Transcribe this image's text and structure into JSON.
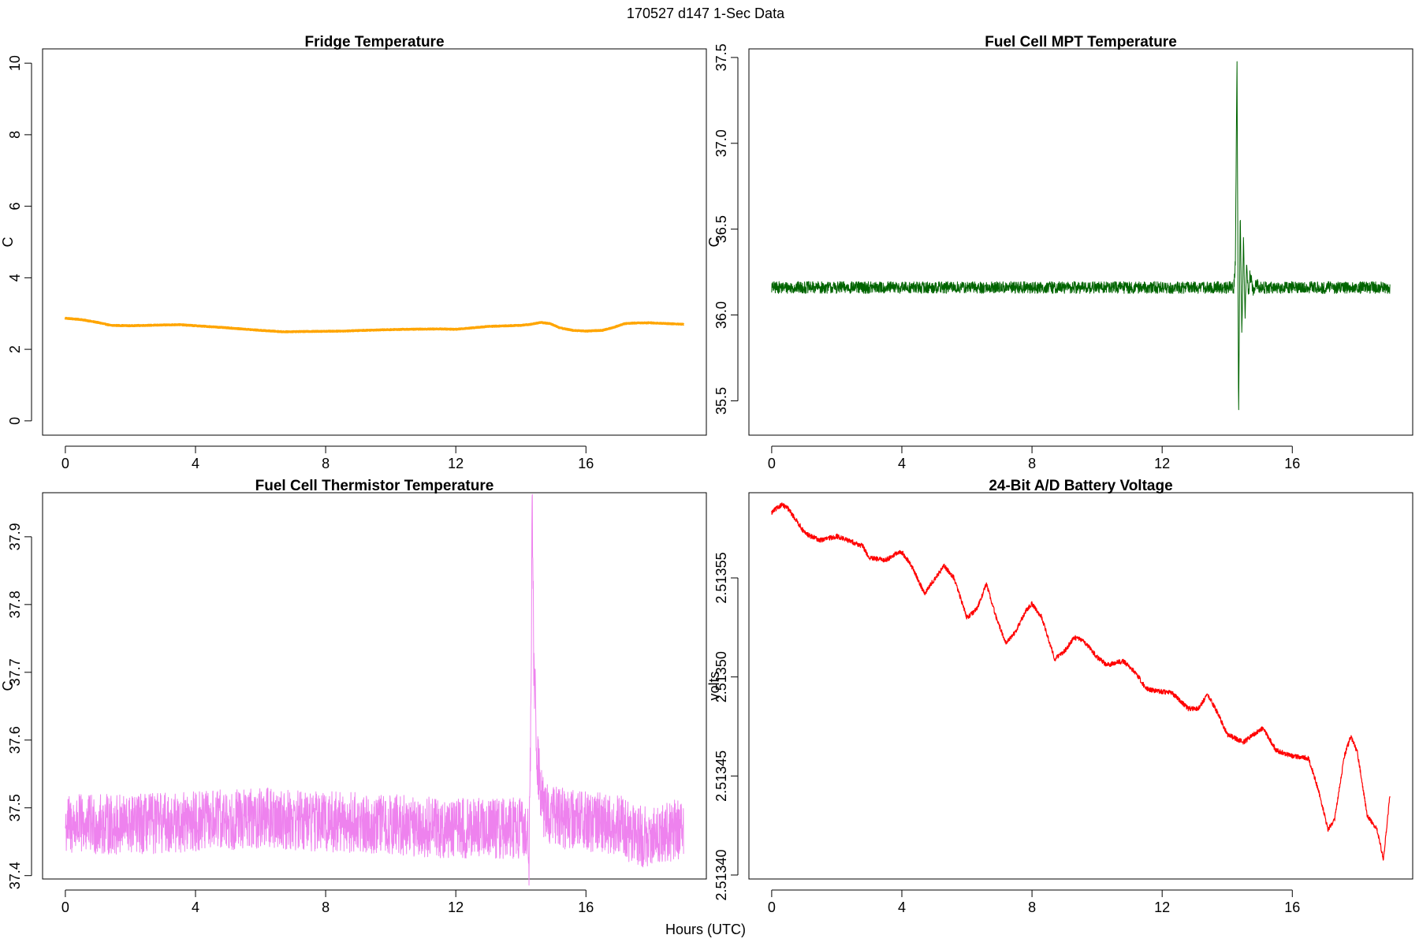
{
  "figure": {
    "main_title": "170527   d147   1-Sec Data",
    "xlabel": "Hours (UTC)"
  },
  "chart_data": [
    {
      "type": "line",
      "title": "Fridge Temperature",
      "ylabel": "C",
      "xlim": [
        -0.7,
        19.7
      ],
      "ylim": [
        -0.4,
        10.4
      ],
      "xticks": [
        0,
        4,
        8,
        12,
        16
      ],
      "xtick_labels": [
        "0",
        "4",
        "8",
        "12",
        "16"
      ],
      "yticks": [
        0,
        2,
        4,
        6,
        8,
        10
      ],
      "ytick_labels": [
        "0",
        "2",
        "4",
        "6",
        "8",
        "10"
      ],
      "color": "#FFA500",
      "line_width": 3,
      "noise": 0.01,
      "x": [
        0,
        0.5,
        1.0,
        1.4,
        2.0,
        3.0,
        3.5,
        4.0,
        5.0,
        6.0,
        6.7,
        7.5,
        8.5,
        9.5,
        10.5,
        11.5,
        12.0,
        12.5,
        13.0,
        14.0,
        14.3,
        14.6,
        14.9,
        15.2,
        15.6,
        16.0,
        16.5,
        16.8,
        17.2,
        17.6,
        18.0,
        18.5,
        19.0
      ],
      "y": [
        2.87,
        2.83,
        2.75,
        2.67,
        2.66,
        2.68,
        2.69,
        2.66,
        2.6,
        2.53,
        2.49,
        2.5,
        2.51,
        2.54,
        2.56,
        2.57,
        2.56,
        2.6,
        2.64,
        2.67,
        2.7,
        2.75,
        2.72,
        2.6,
        2.53,
        2.51,
        2.53,
        2.6,
        2.72,
        2.74,
        2.74,
        2.72,
        2.7
      ]
    },
    {
      "type": "line",
      "title": "Fuel Cell MPT Temperature",
      "ylabel": "C",
      "xlim": [
        -0.7,
        19.7
      ],
      "ylim": [
        35.3,
        37.55
      ],
      "xticks": [
        0,
        4,
        8,
        12,
        16
      ],
      "xtick_labels": [
        "0",
        "4",
        "8",
        "12",
        "16"
      ],
      "yticks": [
        35.5,
        36.0,
        36.5,
        37.0,
        37.5
      ],
      "ytick_labels": [
        "35.5",
        "36.0",
        "36.5",
        "37.0",
        "37.5"
      ],
      "color": "#006400",
      "line_width": 1,
      "noise": 0.035,
      "x": [
        0,
        14.2,
        14.25,
        14.3,
        14.35,
        14.4,
        14.45,
        14.5,
        14.55,
        14.6,
        14.65,
        14.7,
        14.8,
        14.9,
        15.0,
        19.0
      ],
      "y": [
        36.16,
        36.16,
        36.3,
        37.49,
        35.38,
        36.61,
        35.88,
        36.45,
        36.0,
        36.3,
        36.1,
        36.24,
        36.14,
        36.18,
        36.16,
        36.16
      ]
    },
    {
      "type": "line",
      "title": "Fuel Cell Thermistor Temperature",
      "ylabel": "C",
      "xlim": [
        -0.7,
        19.7
      ],
      "ylim": [
        37.395,
        37.965
      ],
      "xticks": [
        0,
        4,
        8,
        12,
        16
      ],
      "xtick_labels": [
        "0",
        "4",
        "8",
        "12",
        "16"
      ],
      "yticks": [
        37.4,
        37.5,
        37.6,
        37.7,
        37.8,
        37.9
      ],
      "ytick_labels": [
        "37.4",
        "37.5",
        "37.6",
        "37.7",
        "37.8",
        "37.9"
      ],
      "color": "#EE82EE",
      "line_width": 1,
      "noise": 0.045,
      "x": [
        0,
        2.0,
        4.0,
        6.0,
        8.0,
        10.0,
        12.0,
        14.2,
        14.25,
        14.3,
        14.35,
        14.4,
        14.45,
        14.5,
        14.6,
        14.7,
        14.9,
        15.2,
        16.0,
        17.0,
        17.5,
        18.0,
        18.5,
        19.0
      ],
      "y": [
        37.475,
        37.475,
        37.48,
        37.485,
        37.48,
        37.475,
        37.47,
        37.47,
        37.42,
        37.6,
        37.96,
        37.7,
        37.65,
        37.57,
        37.53,
        37.5,
        37.49,
        37.485,
        37.48,
        37.475,
        37.46,
        37.455,
        37.465,
        37.47
      ]
    },
    {
      "type": "line",
      "title": "24-Bit A/D Battery Voltage",
      "ylabel": "volts",
      "xlim": [
        -0.7,
        19.7
      ],
      "ylim": [
        2.513398,
        2.513593
      ],
      "xticks": [
        0,
        4,
        8,
        12,
        16
      ],
      "xtick_labels": [
        "0",
        "4",
        "8",
        "12",
        "16"
      ],
      "yticks": [
        2.5134,
        2.51345,
        2.5135,
        2.51355
      ],
      "ytick_labels": [
        "2.51340",
        "2.51345",
        "2.51350",
        "2.51355"
      ],
      "color": "#FF0000",
      "line_width": 1.2,
      "noise": 1.2e-06,
      "x": [
        0,
        0.3,
        0.5,
        0.8,
        1.0,
        1.2,
        1.5,
        2.0,
        2.5,
        2.8,
        3.0,
        3.5,
        3.8,
        4.0,
        4.3,
        4.7,
        4.9,
        5.3,
        5.6,
        6.0,
        6.3,
        6.6,
        6.9,
        7.2,
        7.5,
        7.8,
        8.0,
        8.3,
        8.7,
        9.0,
        9.3,
        9.6,
        10.0,
        10.3,
        10.8,
        11.2,
        11.5,
        11.8,
        12.3,
        12.8,
        13.1,
        13.4,
        13.7,
        14.0,
        14.5,
        14.9,
        15.1,
        15.5,
        16.0,
        16.5,
        16.8,
        17.1,
        17.3,
        17.6,
        17.8,
        18.0,
        18.3,
        18.6,
        18.8,
        19.0
      ],
      "y": [
        2.513583,
        2.513587,
        2.513585,
        2.513578,
        2.513573,
        2.513571,
        2.513569,
        2.513571,
        2.513568,
        2.513566,
        2.51356,
        2.513559,
        2.513562,
        2.513563,
        2.513556,
        2.513542,
        2.513547,
        2.513556,
        2.51355,
        2.51353,
        2.513534,
        2.513547,
        2.51353,
        2.513517,
        2.513523,
        2.513533,
        2.513537,
        2.51353,
        2.513509,
        2.513513,
        2.51352,
        2.513518,
        2.51351,
        2.513506,
        2.513508,
        2.513502,
        2.513494,
        2.513493,
        2.513492,
        2.513484,
        2.513484,
        2.513491,
        2.513482,
        2.513471,
        2.513467,
        2.513472,
        2.513474,
        2.513463,
        2.51346,
        2.513459,
        2.513443,
        2.513423,
        2.513428,
        2.51346,
        2.51347,
        2.513462,
        2.51343,
        2.513423,
        2.513408,
        2.51344
      ]
    }
  ]
}
